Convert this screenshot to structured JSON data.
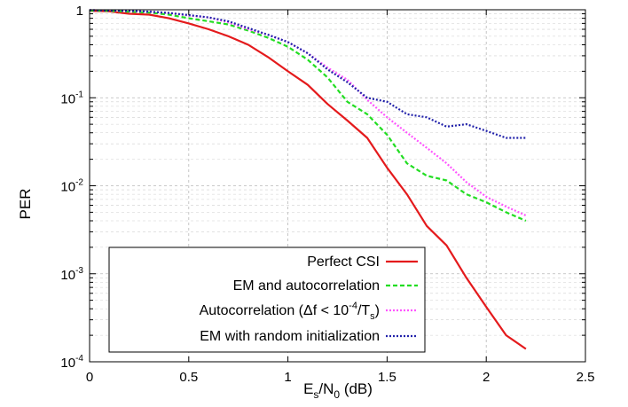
{
  "chart_data": {
    "type": "line",
    "xlabel": {
      "base": "E",
      "sub1": "s",
      "mid": "/N",
      "sub2": "0",
      "tail": " (dB)"
    },
    "ylabel": "PER",
    "xlim": [
      0,
      2.5
    ],
    "ylim": [
      0.0001,
      1
    ],
    "yscale": "log",
    "grid": true,
    "legend_position": "bottom-left",
    "x_ticks": [
      "0",
      "0.5",
      "1",
      "1.5",
      "2",
      "2.5"
    ],
    "y_ticks": [
      {
        "value": 1,
        "base": "1",
        "exp": ""
      },
      {
        "value": 0.1,
        "base": "10",
        "exp": "-1"
      },
      {
        "value": 0.01,
        "base": "10",
        "exp": "-2"
      },
      {
        "value": 0.001,
        "base": "10",
        "exp": "-3"
      },
      {
        "value": 0.0001,
        "base": "10",
        "exp": "-4"
      }
    ],
    "series": [
      {
        "name": "Perfect CSI",
        "legend": {
          "text": "Perfect CSI"
        },
        "color": "#e41a1c",
        "style": "solid",
        "x": [
          0,
          0.1,
          0.2,
          0.3,
          0.4,
          0.5,
          0.6,
          0.7,
          0.8,
          0.9,
          1.0,
          1.1,
          1.2,
          1.3,
          1.4,
          1.5,
          1.6,
          1.7,
          1.8,
          1.9,
          2.0,
          2.1,
          2.2
        ],
        "y": [
          0.97,
          0.96,
          0.9,
          0.88,
          0.8,
          0.7,
          0.6,
          0.5,
          0.4,
          0.29,
          0.2,
          0.14,
          0.085,
          0.055,
          0.035,
          0.016,
          0.008,
          0.0035,
          0.0021,
          0.0009,
          0.00042,
          0.0002,
          0.00014
        ]
      },
      {
        "name": "EM and autocorrelation",
        "legend": {
          "text": "EM and autocorrelation"
        },
        "color": "#22dd22",
        "style": "dashed",
        "x": [
          0,
          0.1,
          0.2,
          0.3,
          0.4,
          0.5,
          0.6,
          0.7,
          0.8,
          0.9,
          1.0,
          1.1,
          1.2,
          1.3,
          1.4,
          1.5,
          1.6,
          1.7,
          1.8,
          1.9,
          2.0,
          2.1,
          2.2
        ],
        "y": [
          0.98,
          0.97,
          0.95,
          0.93,
          0.88,
          0.8,
          0.74,
          0.68,
          0.58,
          0.48,
          0.38,
          0.27,
          0.17,
          0.09,
          0.065,
          0.038,
          0.018,
          0.013,
          0.0115,
          0.008,
          0.0065,
          0.005,
          0.004
        ]
      },
      {
        "name": "Autocorrelation",
        "legend": {
          "text": "Autocorrelation (",
          "delta": "Δf < 10",
          "exp": "-4",
          "mid": "/T",
          "sub": "s",
          "tail": ")"
        },
        "color": "#ff55ff",
        "style": "dotted",
        "x": [
          0,
          0.1,
          0.2,
          0.3,
          0.4,
          0.5,
          0.6,
          0.7,
          0.8,
          0.9,
          1.0,
          1.1,
          1.2,
          1.3,
          1.4,
          1.5,
          1.6,
          1.7,
          1.8,
          1.9,
          2.0,
          2.1,
          2.2
        ],
        "y": [
          0.99,
          0.98,
          0.97,
          0.95,
          0.92,
          0.86,
          0.82,
          0.72,
          0.6,
          0.52,
          0.43,
          0.32,
          0.22,
          0.16,
          0.095,
          0.06,
          0.04,
          0.027,
          0.018,
          0.011,
          0.0075,
          0.0058,
          0.0046
        ]
      },
      {
        "name": "EM with random initialization",
        "legend": {
          "text": "EM with random initialization"
        },
        "color": "#2222aa",
        "style": "dotted",
        "x": [
          0,
          0.1,
          0.2,
          0.3,
          0.4,
          0.5,
          0.6,
          0.7,
          0.8,
          0.9,
          1.0,
          1.1,
          1.2,
          1.3,
          1.4,
          1.5,
          1.6,
          1.7,
          1.8,
          1.9,
          2.0,
          2.1,
          2.2
        ],
        "y": [
          0.99,
          0.98,
          0.97,
          0.95,
          0.92,
          0.87,
          0.82,
          0.74,
          0.62,
          0.52,
          0.43,
          0.32,
          0.21,
          0.15,
          0.1,
          0.09,
          0.065,
          0.06,
          0.047,
          0.05,
          0.042,
          0.035,
          0.035
        ]
      }
    ]
  }
}
